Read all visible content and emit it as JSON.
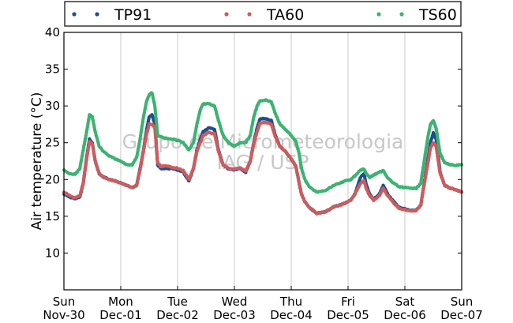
{
  "watermark": [
    "Grupo de Micrometeorologia",
    "IAG / USP"
  ],
  "chart_data": {
    "type": "scatter",
    "title": "",
    "xlabel": "",
    "ylabel": "Air temperature (°C)",
    "xlim": [
      0,
      7
    ],
    "ylim": [
      5,
      40
    ],
    "y_ticks": [
      10,
      15,
      20,
      25,
      30,
      35,
      40
    ],
    "x_ticks": [
      {
        "pos": 0,
        "day": "Sun",
        "date": "Nov-30"
      },
      {
        "pos": 1,
        "day": "Mon",
        "date": "Dec-01"
      },
      {
        "pos": 2,
        "day": "Tue",
        "date": "Dec-02"
      },
      {
        "pos": 3,
        "day": "Wed",
        "date": "Dec-03"
      },
      {
        "pos": 4,
        "day": "Thu",
        "date": "Dec-04"
      },
      {
        "pos": 5,
        "day": "Fri",
        "date": "Dec-05"
      },
      {
        "pos": 6,
        "day": "Sat",
        "date": "Dec-06"
      },
      {
        "pos": 7,
        "day": "Sun",
        "date": "Dec-07"
      }
    ],
    "grid": "vertical",
    "legend_position": "top",
    "series": [
      {
        "name": "TP91",
        "color": "#1f4e8c",
        "points": [
          [
            0.0,
            18.0
          ],
          [
            0.1,
            17.6
          ],
          [
            0.2,
            17.4
          ],
          [
            0.28,
            17.6
          ],
          [
            0.34,
            19.5
          ],
          [
            0.4,
            23.0
          ],
          [
            0.45,
            25.5
          ],
          [
            0.5,
            25.0
          ],
          [
            0.55,
            22.5
          ],
          [
            0.62,
            20.8
          ],
          [
            0.7,
            20.3
          ],
          [
            0.8,
            20.0
          ],
          [
            0.9,
            19.8
          ],
          [
            1.0,
            19.5
          ],
          [
            1.1,
            19.2
          ],
          [
            1.2,
            18.9
          ],
          [
            1.28,
            19.2
          ],
          [
            1.34,
            21.5
          ],
          [
            1.4,
            24.0
          ],
          [
            1.45,
            26.5
          ],
          [
            1.5,
            28.5
          ],
          [
            1.55,
            28.8
          ],
          [
            1.6,
            27.5
          ],
          [
            1.65,
            22.0
          ],
          [
            1.7,
            21.5
          ],
          [
            1.8,
            21.5
          ],
          [
            1.9,
            21.5
          ],
          [
            2.0,
            21.3
          ],
          [
            2.1,
            21.0
          ],
          [
            2.2,
            19.8
          ],
          [
            2.28,
            21.5
          ],
          [
            2.34,
            24.0
          ],
          [
            2.4,
            25.5
          ],
          [
            2.45,
            26.5
          ],
          [
            2.55,
            27.0
          ],
          [
            2.65,
            26.8
          ],
          [
            2.72,
            24.0
          ],
          [
            2.8,
            22.0
          ],
          [
            2.9,
            21.4
          ],
          [
            3.0,
            21.3
          ],
          [
            3.1,
            21.5
          ],
          [
            3.2,
            21.0
          ],
          [
            3.28,
            22.5
          ],
          [
            3.34,
            25.0
          ],
          [
            3.4,
            27.0
          ],
          [
            3.45,
            28.2
          ],
          [
            3.55,
            28.3
          ],
          [
            3.65,
            28.0
          ],
          [
            3.72,
            26.0
          ],
          [
            3.8,
            24.5
          ],
          [
            3.9,
            23.8
          ],
          [
            4.0,
            22.8
          ],
          [
            4.08,
            21.8
          ],
          [
            4.14,
            19.5
          ],
          [
            4.18,
            18.0
          ],
          [
            4.24,
            17.0
          ],
          [
            4.32,
            16.2
          ],
          [
            4.45,
            15.4
          ],
          [
            4.6,
            15.6
          ],
          [
            4.75,
            16.3
          ],
          [
            4.85,
            16.5
          ],
          [
            4.95,
            16.8
          ],
          [
            5.05,
            17.2
          ],
          [
            5.12,
            18.0
          ],
          [
            5.22,
            20.3
          ],
          [
            5.28,
            20.8
          ],
          [
            5.32,
            19.3
          ],
          [
            5.38,
            18.0
          ],
          [
            5.45,
            17.3
          ],
          [
            5.55,
            18.0
          ],
          [
            5.62,
            19.2
          ],
          [
            5.7,
            18.0
          ],
          [
            5.8,
            17.0
          ],
          [
            5.9,
            16.2
          ],
          [
            6.0,
            16.0
          ],
          [
            6.1,
            15.8
          ],
          [
            6.2,
            15.8
          ],
          [
            6.28,
            16.5
          ],
          [
            6.34,
            19.5
          ],
          [
            6.4,
            22.5
          ],
          [
            6.45,
            25.0
          ],
          [
            6.5,
            26.3
          ],
          [
            6.55,
            25.5
          ],
          [
            6.62,
            21.0
          ],
          [
            6.7,
            19.2
          ],
          [
            6.8,
            18.8
          ],
          [
            6.9,
            18.6
          ],
          [
            7.0,
            18.3
          ]
        ]
      },
      {
        "name": "TA60",
        "color": "#cd5c5c",
        "points": [
          [
            0.0,
            18.3
          ],
          [
            0.1,
            17.8
          ],
          [
            0.2,
            17.5
          ],
          [
            0.28,
            17.8
          ],
          [
            0.34,
            19.5
          ],
          [
            0.4,
            22.8
          ],
          [
            0.45,
            25.2
          ],
          [
            0.5,
            24.8
          ],
          [
            0.55,
            22.5
          ],
          [
            0.62,
            20.8
          ],
          [
            0.7,
            20.3
          ],
          [
            0.8,
            20.0
          ],
          [
            0.9,
            19.8
          ],
          [
            1.0,
            19.5
          ],
          [
            1.1,
            19.2
          ],
          [
            1.2,
            18.9
          ],
          [
            1.28,
            19.2
          ],
          [
            1.34,
            21.3
          ],
          [
            1.4,
            23.8
          ],
          [
            1.45,
            26.0
          ],
          [
            1.5,
            27.5
          ],
          [
            1.55,
            27.5
          ],
          [
            1.6,
            27.0
          ],
          [
            1.65,
            22.3
          ],
          [
            1.7,
            21.8
          ],
          [
            1.8,
            21.8
          ],
          [
            1.9,
            21.7
          ],
          [
            2.0,
            21.5
          ],
          [
            2.1,
            21.2
          ],
          [
            2.2,
            20.0
          ],
          [
            2.28,
            21.5
          ],
          [
            2.34,
            23.8
          ],
          [
            2.4,
            25.0
          ],
          [
            2.45,
            26.0
          ],
          [
            2.55,
            26.4
          ],
          [
            2.65,
            26.2
          ],
          [
            2.72,
            23.8
          ],
          [
            2.8,
            22.0
          ],
          [
            2.9,
            21.5
          ],
          [
            3.0,
            21.4
          ],
          [
            3.1,
            21.6
          ],
          [
            3.2,
            21.1
          ],
          [
            3.28,
            22.5
          ],
          [
            3.34,
            24.8
          ],
          [
            3.4,
            26.5
          ],
          [
            3.45,
            27.6
          ],
          [
            3.55,
            27.8
          ],
          [
            3.65,
            27.5
          ],
          [
            3.72,
            25.8
          ],
          [
            3.8,
            24.5
          ],
          [
            3.9,
            23.8
          ],
          [
            4.0,
            22.8
          ],
          [
            4.08,
            21.8
          ],
          [
            4.14,
            19.5
          ],
          [
            4.18,
            18.0
          ],
          [
            4.24,
            17.0
          ],
          [
            4.32,
            16.2
          ],
          [
            4.45,
            15.4
          ],
          [
            4.6,
            15.6
          ],
          [
            4.75,
            16.3
          ],
          [
            4.85,
            16.5
          ],
          [
            4.95,
            16.8
          ],
          [
            5.05,
            17.2
          ],
          [
            5.12,
            18.0
          ],
          [
            5.22,
            19.5
          ],
          [
            5.28,
            19.8
          ],
          [
            5.32,
            18.8
          ],
          [
            5.38,
            17.8
          ],
          [
            5.45,
            17.2
          ],
          [
            5.55,
            17.8
          ],
          [
            5.62,
            18.8
          ],
          [
            5.7,
            17.8
          ],
          [
            5.8,
            16.8
          ],
          [
            5.9,
            16.1
          ],
          [
            6.0,
            15.9
          ],
          [
            6.1,
            15.7
          ],
          [
            6.2,
            15.8
          ],
          [
            6.28,
            16.5
          ],
          [
            6.34,
            19.3
          ],
          [
            6.4,
            22.0
          ],
          [
            6.45,
            24.3
          ],
          [
            6.5,
            25.0
          ],
          [
            6.55,
            24.5
          ],
          [
            6.62,
            20.8
          ],
          [
            6.7,
            19.2
          ],
          [
            6.8,
            18.8
          ],
          [
            6.9,
            18.6
          ],
          [
            7.0,
            18.3
          ]
        ]
      },
      {
        "name": "TS60",
        "color": "#3cb371",
        "points": [
          [
            0.0,
            21.3
          ],
          [
            0.1,
            20.8
          ],
          [
            0.2,
            20.7
          ],
          [
            0.28,
            21.5
          ],
          [
            0.34,
            24.0
          ],
          [
            0.4,
            26.5
          ],
          [
            0.45,
            28.8
          ],
          [
            0.5,
            28.5
          ],
          [
            0.55,
            26.5
          ],
          [
            0.62,
            24.5
          ],
          [
            0.7,
            23.8
          ],
          [
            0.8,
            23.2
          ],
          [
            0.9,
            22.8
          ],
          [
            1.0,
            22.5
          ],
          [
            1.1,
            22.0
          ],
          [
            1.2,
            22.0
          ],
          [
            1.28,
            23.0
          ],
          [
            1.34,
            25.5
          ],
          [
            1.4,
            28.5
          ],
          [
            1.45,
            30.5
          ],
          [
            1.5,
            31.5
          ],
          [
            1.55,
            31.8
          ],
          [
            1.6,
            30.0
          ],
          [
            1.65,
            26.0
          ],
          [
            1.7,
            25.8
          ],
          [
            1.8,
            25.6
          ],
          [
            1.9,
            25.5
          ],
          [
            2.0,
            25.3
          ],
          [
            2.1,
            25.0
          ],
          [
            2.2,
            24.0
          ],
          [
            2.28,
            25.0
          ],
          [
            2.34,
            27.5
          ],
          [
            2.4,
            29.5
          ],
          [
            2.45,
            30.3
          ],
          [
            2.55,
            30.3
          ],
          [
            2.65,
            30.0
          ],
          [
            2.72,
            28.0
          ],
          [
            2.8,
            26.0
          ],
          [
            2.9,
            25.0
          ],
          [
            3.0,
            24.5
          ],
          [
            3.1,
            25.0
          ],
          [
            3.2,
            25.0
          ],
          [
            3.28,
            26.0
          ],
          [
            3.34,
            28.5
          ],
          [
            3.4,
            30.0
          ],
          [
            3.45,
            30.7
          ],
          [
            3.55,
            30.8
          ],
          [
            3.65,
            30.5
          ],
          [
            3.72,
            29.0
          ],
          [
            3.8,
            27.5
          ],
          [
            3.9,
            26.8
          ],
          [
            4.0,
            26.0
          ],
          [
            4.08,
            25.2
          ],
          [
            4.14,
            23.5
          ],
          [
            4.18,
            21.5
          ],
          [
            4.24,
            20.0
          ],
          [
            4.32,
            19.0
          ],
          [
            4.45,
            18.3
          ],
          [
            4.6,
            18.5
          ],
          [
            4.75,
            19.2
          ],
          [
            4.85,
            19.5
          ],
          [
            4.95,
            19.8
          ],
          [
            5.05,
            20.0
          ],
          [
            5.12,
            20.5
          ],
          [
            5.22,
            21.3
          ],
          [
            5.28,
            21.4
          ],
          [
            5.32,
            20.8
          ],
          [
            5.38,
            20.3
          ],
          [
            5.45,
            20.6
          ],
          [
            5.55,
            21.0
          ],
          [
            5.62,
            21.2
          ],
          [
            5.7,
            20.2
          ],
          [
            5.8,
            19.5
          ],
          [
            5.9,
            19.0
          ],
          [
            6.0,
            18.9
          ],
          [
            6.1,
            18.8
          ],
          [
            6.2,
            18.8
          ],
          [
            6.28,
            19.5
          ],
          [
            6.34,
            22.5
          ],
          [
            6.4,
            25.5
          ],
          [
            6.45,
            27.5
          ],
          [
            6.5,
            28.0
          ],
          [
            6.55,
            27.0
          ],
          [
            6.62,
            23.5
          ],
          [
            6.7,
            22.3
          ],
          [
            6.8,
            22.0
          ],
          [
            6.9,
            21.9
          ],
          [
            7.0,
            22.0
          ]
        ]
      }
    ]
  }
}
